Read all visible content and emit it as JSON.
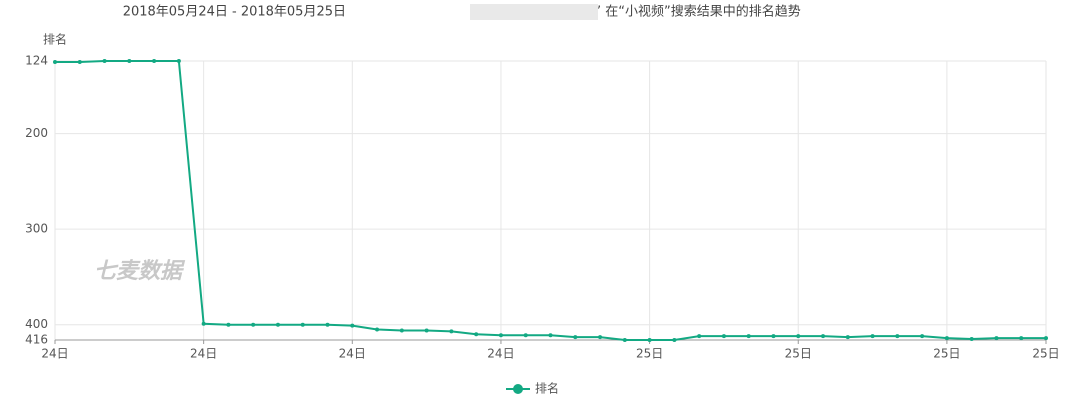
{
  "chart_data": {
    "type": "line",
    "title_parts": [
      "2018年05月24日 - 2018年05月25日",
      "’ 在“小视频”搜索结果中的排名趋势"
    ],
    "y_label": "排名",
    "watermark": "七麦数据",
    "categories": [
      "24日",
      null,
      null,
      null,
      null,
      null,
      "24日",
      null,
      null,
      null,
      null,
      null,
      "24日",
      null,
      null,
      null,
      null,
      null,
      "24日",
      null,
      null,
      null,
      null,
      null,
      "25日",
      null,
      null,
      null,
      null,
      null,
      "25日",
      null,
      null,
      null,
      null,
      null,
      "25日",
      null,
      null,
      null,
      "25日"
    ],
    "series": [
      {
        "name": "排名",
        "color": "#13a983",
        "values": [
          125,
          125,
          124,
          124,
          124,
          124,
          399,
          400,
          400,
          400,
          400,
          400,
          401,
          405,
          406,
          406,
          407,
          410,
          411,
          411,
          411,
          413,
          413,
          416,
          416,
          416,
          412,
          412,
          412,
          412,
          412,
          412,
          413,
          412,
          412,
          412,
          414,
          415,
          414,
          414,
          414
        ]
      }
    ],
    "ylim": [
      124,
      416
    ],
    "y_inverted": true,
    "yticks": [
      124,
      200,
      300,
      400,
      416
    ],
    "grid": true,
    "legend": "bottom"
  }
}
